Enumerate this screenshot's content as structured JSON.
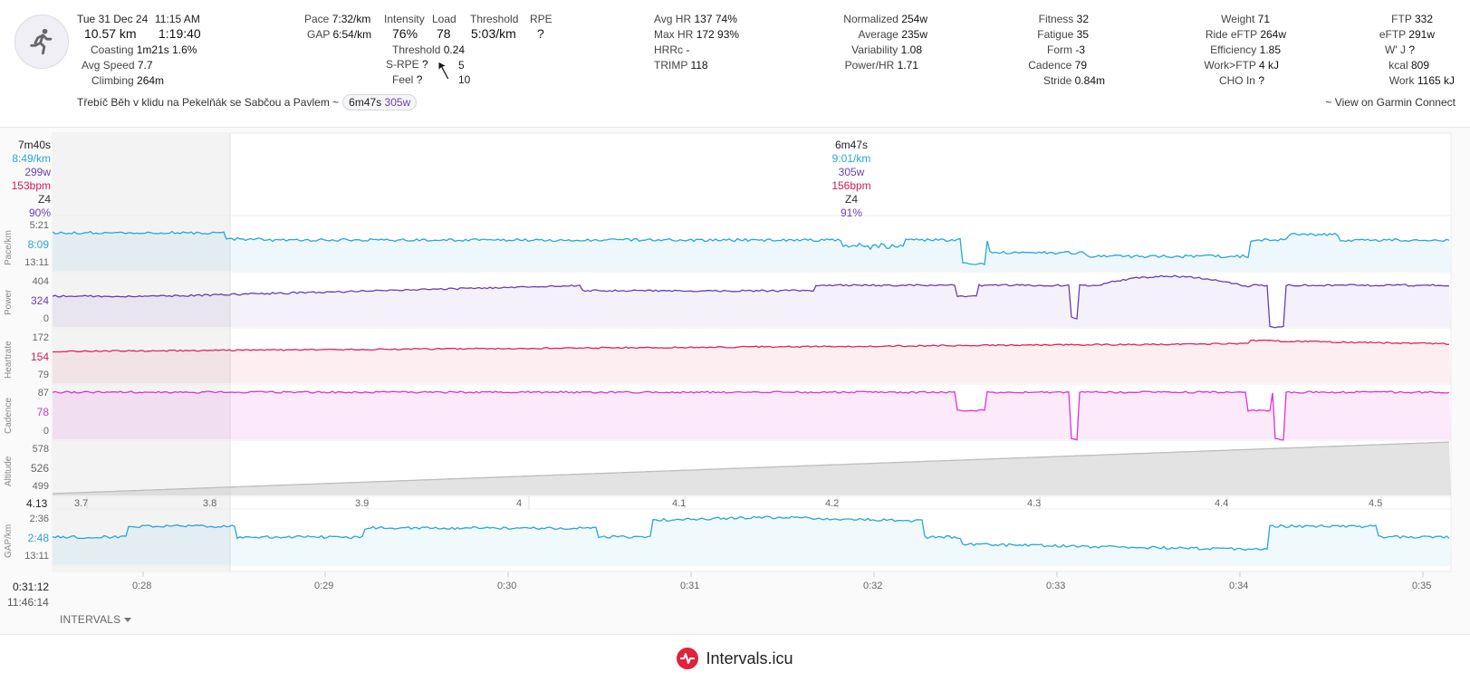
{
  "summary": {
    "date": "Tue 31 Dec 24",
    "time": "11:15 AM",
    "distance": "10.57 km",
    "duration": "1:19:40",
    "coasting_label": "Coasting",
    "coasting_value": "1m21s  1.6%",
    "avg_speed_label": "Avg Speed",
    "avg_speed_value": "7.7",
    "climbing_label": "Climbing",
    "climbing_value": "264m",
    "pace_label": "Pace",
    "pace_value": "7:32/km",
    "gap_label": "GAP",
    "gap_value": "6:54/km",
    "intensity_label": "Intensity",
    "intensity_value": "76%",
    "load_label": "Load",
    "load_value": "78",
    "threshold_label": "Threshold",
    "threshold_value": "5:03/km",
    "rpe_label": "RPE",
    "rpe_value": "?",
    "threshold2_label": "Threshold",
    "threshold2_value": "0.24",
    "srpe_label": "S-RPE",
    "srpe_value": "?",
    "srpe_num": "5",
    "feel_label": "Feel",
    "feel_value": "?",
    "feel_num": "10",
    "avg_hr_label": "Avg HR",
    "avg_hr_value": "137  74%",
    "max_hr_label": "Max HR",
    "max_hr_value": "172  93%",
    "hrrc_label": "HRRc",
    "hrrc_value": "-",
    "trimp_label": "TRIMP",
    "trimp_value": "118",
    "normalized_label": "Normalized",
    "normalized_value": "254w",
    "average_label": "Average",
    "average_value": "235w",
    "variability_label": "Variability",
    "variability_value": "1.08",
    "powerhr_label": "Power/HR",
    "powerhr_value": "1.71",
    "fitness_label": "Fitness",
    "fitness_value": "32",
    "fatigue_label": "Fatigue",
    "fatigue_value": "35",
    "form_label": "Form",
    "form_value": "-3",
    "cadence_label": "Cadence",
    "cadence_value": "79",
    "stride_label": "Stride",
    "stride_value": "0.84m",
    "weight_label": "Weight",
    "weight_value": "71",
    "ride_eftp_label": "Ride eFTP",
    "ride_eftp_value": "264w",
    "efficiency_label": "Efficiency",
    "efficiency_value": "1.85",
    "workftp_label": "Work>FTP",
    "workftp_value": "4 kJ",
    "cho_label": "CHO In",
    "cho_value": "?",
    "ftp_label": "FTP",
    "ftp_value": "332",
    "eftp_label": "eFTP",
    "eftp_value": "291w",
    "wprime_label": "W' J",
    "wprime_value": "?",
    "kcal_label": "kcal",
    "kcal_value": "809",
    "work_label": "Work",
    "work_value": "1165 kJ",
    "activity_title": "Třebíč Běh v klidu na Pekelňák se Sabčou a Pavlem ~",
    "chip_time": "6m47s",
    "chip_power": "305w",
    "garmin_link": "~ View on Garmin Connect"
  },
  "hover_left": {
    "time": "7m40s",
    "pace": "8:49/km",
    "power": "299w",
    "hr": "153bpm",
    "zone": "Z4",
    "pct": "90%"
  },
  "hover_center": {
    "time": "6m47s",
    "pace": "9:01/km",
    "power": "305w",
    "hr": "156bpm",
    "zone": "Z4",
    "pct": "91%"
  },
  "lanes": {
    "pace": {
      "label": "Pace/km",
      "top": "5:21",
      "mid": "8:09",
      "bot": "13:11"
    },
    "power": {
      "label": "Power",
      "top": "404",
      "mid": "324",
      "bot": "0"
    },
    "hr": {
      "label": "Heartrate",
      "top": "172",
      "mid": "154",
      "bot": "79"
    },
    "cadence": {
      "label": "Cadence",
      "top": "87",
      "mid": "78",
      "bot": "0"
    },
    "altitude": {
      "label": "Altitude",
      "top": "578",
      "mid": "526",
      "bot": "499"
    },
    "gap": {
      "label": "GAP/km",
      "top": "2:36",
      "mid": "2:48",
      "bot": "13:11"
    }
  },
  "distance_axis": {
    "start": "4.13",
    "ticks": [
      "3.7",
      "3.8",
      "3.9",
      "4",
      "4.1",
      "4.2",
      "4.3",
      "4.4",
      "4.5"
    ]
  },
  "time_axis": {
    "start": "0:31:12",
    "clock": "11:46:14",
    "ticks": [
      "0:28",
      "0:29",
      "0:30",
      "0:31",
      "0:32",
      "0:33",
      "0:34",
      "0:35"
    ]
  },
  "intervals_button": "INTERVALS",
  "footer_brand": "Intervals.icu",
  "colors": {
    "pace": "#2aa5d8",
    "power": "#6a3fb2",
    "hr": "#e0245e",
    "cadence": "#e02fd8",
    "altitude": "#c8c8c8",
    "brand": "#e3213b"
  }
}
